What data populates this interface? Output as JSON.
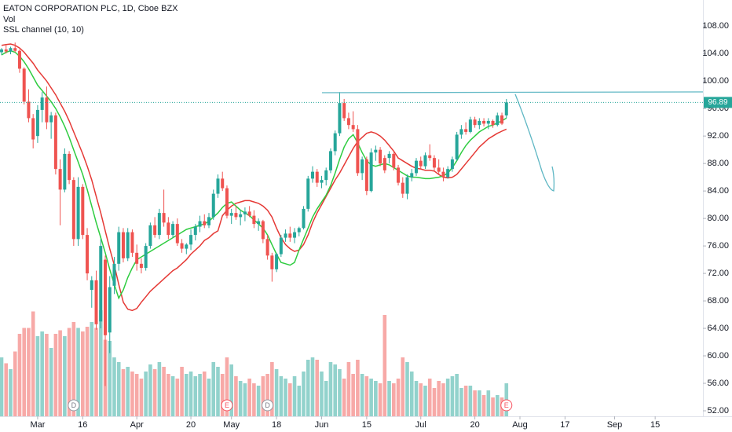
{
  "chart_data": {
    "type": "candlestick",
    "title": "EATON CORPORATION PLC, 1D, Cboe BZX",
    "indicators": [
      "Vol",
      "SSL channel (10, 10)"
    ],
    "up_color": "#26a69a",
    "down_color": "#ef5350",
    "ylim": [
      51.2,
      111.8
    ],
    "yticks": [
      {
        "value": 52,
        "label": "52.00"
      },
      {
        "value": 56,
        "label": "56.00"
      },
      {
        "value": 60,
        "label": "60.00"
      },
      {
        "value": 64,
        "label": "64.00"
      },
      {
        "value": 68,
        "label": "68.00"
      },
      {
        "value": 72,
        "label": "72.00"
      },
      {
        "value": 76,
        "label": "76.00"
      },
      {
        "value": 80,
        "label": "80.00"
      },
      {
        "value": 84,
        "label": "84.00"
      },
      {
        "value": 88,
        "label": "88.00"
      },
      {
        "value": 92,
        "label": "92.00"
      },
      {
        "value": 96,
        "label": "96.00"
      },
      {
        "value": 100,
        "label": "100.00"
      },
      {
        "value": 104,
        "label": "104.00"
      },
      {
        "value": 108,
        "label": "108.00"
      }
    ],
    "xlim": [
      -0.35,
      155.6
    ],
    "xticks": [
      {
        "value": 8,
        "label": "Mar"
      },
      {
        "value": 18,
        "label": "16"
      },
      {
        "value": 30,
        "label": "Apr"
      },
      {
        "value": 42,
        "label": "20"
      },
      {
        "value": 51,
        "label": "May"
      },
      {
        "value": 61,
        "label": "18"
      },
      {
        "value": 71,
        "label": "Jun"
      },
      {
        "value": 81,
        "label": "15"
      },
      {
        "value": 93,
        "label": "Jul"
      },
      {
        "value": 105,
        "label": "20"
      },
      {
        "value": 115,
        "label": "Aug"
      },
      {
        "value": 125,
        "label": "17"
      },
      {
        "value": 136,
        "label": "Sep"
      },
      {
        "value": 145,
        "label": "15"
      }
    ],
    "grid": false,
    "last_price": 96.89,
    "ohlc": [
      [
        104.2,
        104.8,
        103.8,
        104.6
      ],
      [
        104.6,
        105.2,
        104.0,
        104.3
      ],
      [
        104.3,
        105.0,
        103.9,
        104.8
      ],
      [
        104.8,
        105.6,
        104.2,
        104.4
      ],
      [
        104.4,
        104.6,
        101.2,
        101.8
      ],
      [
        101.8,
        102.0,
        96.6,
        97.0
      ],
      [
        97.0,
        98.8,
        94.0,
        94.6
      ],
      [
        94.6,
        95.2,
        90.2,
        91.5
      ],
      [
        92.0,
        96.5,
        91.0,
        95.8
      ],
      [
        95.8,
        98.4,
        94.0,
        97.6
      ],
      [
        97.6,
        99.2,
        93.0,
        94.0
      ],
      [
        94.0,
        95.5,
        91.6,
        95.0
      ],
      [
        95.0,
        95.4,
        86.4,
        87.2
      ],
      [
        87.2,
        88.6,
        79.0,
        84.2
      ],
      [
        84.2,
        90.2,
        83.8,
        89.4
      ],
      [
        89.4,
        89.8,
        85.0,
        85.6
      ],
      [
        85.6,
        86.0,
        76.0,
        77.0
      ],
      [
        77.0,
        86.0,
        76.0,
        84.6
      ],
      [
        84.6,
        85.0,
        77.0,
        77.6
      ],
      [
        77.6,
        78.6,
        71.0,
        72.0
      ],
      [
        69.6,
        71.6,
        67.0,
        71.0
      ],
      [
        71.0,
        72.4,
        63.8,
        64.6
      ],
      [
        65.0,
        77.0,
        64.0,
        76.0
      ],
      [
        74.0,
        74.6,
        55.6,
        63.0
      ],
      [
        63.4,
        71.6,
        60.4,
        70.0
      ],
      [
        70.2,
        74.4,
        69.0,
        73.4
      ],
      [
        73.4,
        78.8,
        72.4,
        78.0
      ],
      [
        78.0,
        78.6,
        73.6,
        74.2
      ],
      [
        74.2,
        78.6,
        73.8,
        78.0
      ],
      [
        78.0,
        78.4,
        74.4,
        75.0
      ],
      [
        75.0,
        76.2,
        72.4,
        73.4
      ],
      [
        73.4,
        74.2,
        72.0,
        72.8
      ],
      [
        72.8,
        76.4,
        72.4,
        76.0
      ],
      [
        76.0,
        79.4,
        75.6,
        79.0
      ],
      [
        79.0,
        80.2,
        77.2,
        77.6
      ],
      [
        77.6,
        81.4,
        77.0,
        80.8
      ],
      [
        80.8,
        84.2,
        78.8,
        79.4
      ],
      [
        79.4,
        80.2,
        77.0,
        77.6
      ],
      [
        77.6,
        79.6,
        77.2,
        79.2
      ],
      [
        79.2,
        80.0,
        76.0,
        76.4
      ],
      [
        76.4,
        77.0,
        75.0,
        75.6
      ],
      [
        75.6,
        76.4,
        74.8,
        76.2
      ],
      [
        76.2,
        78.4,
        75.4,
        77.6
      ],
      [
        77.6,
        79.2,
        76.8,
        78.8
      ],
      [
        78.8,
        80.4,
        78.0,
        79.6
      ],
      [
        79.6,
        80.6,
        78.6,
        79.0
      ],
      [
        79.0,
        80.8,
        78.6,
        80.2
      ],
      [
        80.2,
        84.2,
        79.8,
        83.6
      ],
      [
        83.6,
        86.4,
        83.0,
        85.8
      ],
      [
        85.8,
        86.8,
        84.0,
        84.4
      ],
      [
        84.4,
        84.8,
        80.0,
        80.4
      ],
      [
        80.4,
        81.4,
        79.2,
        80.8
      ],
      [
        80.8,
        81.8,
        79.8,
        80.2
      ],
      [
        80.2,
        81.2,
        79.0,
        80.6
      ],
      [
        80.6,
        81.6,
        79.6,
        81.0
      ],
      [
        81.0,
        81.8,
        80.2,
        80.4
      ],
      [
        80.4,
        81.2,
        78.6,
        79.2
      ],
      [
        79.2,
        80.0,
        78.2,
        79.6
      ],
      [
        79.6,
        79.8,
        76.4,
        77.0
      ],
      [
        77.0,
        77.6,
        74.0,
        74.6
      ],
      [
        74.6,
        75.0,
        70.8,
        72.6
      ],
      [
        72.6,
        75.0,
        72.2,
        74.8
      ],
      [
        74.8,
        77.6,
        74.4,
        77.2
      ],
      [
        77.2,
        78.4,
        76.6,
        77.8
      ],
      [
        77.8,
        78.8,
        76.6,
        77.2
      ],
      [
        77.2,
        78.6,
        76.4,
        78.0
      ],
      [
        78.0,
        78.8,
        77.4,
        78.6
      ],
      [
        78.6,
        81.8,
        78.4,
        81.4
      ],
      [
        81.4,
        86.2,
        81.0,
        85.8
      ],
      [
        85.8,
        87.6,
        85.2,
        86.8
      ],
      [
        86.8,
        87.2,
        84.6,
        85.2
      ],
      [
        85.2,
        86.2,
        84.4,
        85.6
      ],
      [
        85.6,
        87.4,
        84.8,
        87.0
      ],
      [
        87.0,
        90.2,
        86.6,
        89.8
      ],
      [
        89.8,
        92.8,
        89.2,
        92.4
      ],
      [
        92.4,
        98.4,
        92.0,
        96.8
      ],
      [
        96.8,
        97.4,
        94.2,
        94.6
      ],
      [
        94.6,
        95.4,
        93.0,
        93.6
      ],
      [
        93.6,
        95.6,
        92.6,
        93.0
      ],
      [
        93.0,
        93.6,
        86.2,
        86.6
      ],
      [
        86.6,
        89.0,
        85.6,
        88.6
      ],
      [
        88.6,
        89.0,
        83.4,
        84.0
      ],
      [
        84.0,
        90.2,
        83.8,
        89.6
      ],
      [
        89.6,
        90.6,
        88.4,
        90.0
      ],
      [
        90.0,
        90.4,
        87.6,
        88.0
      ],
      [
        88.8,
        89.2,
        86.6,
        87.0
      ],
      [
        88.8,
        89.8,
        88.0,
        89.4
      ],
      [
        89.4,
        89.6,
        87.0,
        87.4
      ],
      [
        87.4,
        87.8,
        84.8,
        85.2
      ],
      [
        85.2,
        86.0,
        83.0,
        83.6
      ],
      [
        83.6,
        86.4,
        82.8,
        86.0
      ],
      [
        86.0,
        87.2,
        85.4,
        86.6
      ],
      [
        86.6,
        88.8,
        86.2,
        88.4
      ],
      [
        88.4,
        89.0,
        87.2,
        87.6
      ],
      [
        87.6,
        89.6,
        87.2,
        89.2
      ],
      [
        89.2,
        90.8,
        88.4,
        88.8
      ],
      [
        88.8,
        89.2,
        87.0,
        87.4
      ],
      [
        87.4,
        88.6,
        86.4,
        86.8
      ],
      [
        86.8,
        87.4,
        85.4,
        86.0
      ],
      [
        86.0,
        87.6,
        85.8,
        87.2
      ],
      [
        87.2,
        89.0,
        86.8,
        88.6
      ],
      [
        88.6,
        92.6,
        88.4,
        92.2
      ],
      [
        92.2,
        93.6,
        91.6,
        93.0
      ],
      [
        93.0,
        94.0,
        92.2,
        92.6
      ],
      [
        92.6,
        94.8,
        92.4,
        94.4
      ],
      [
        94.4,
        94.8,
        93.2,
        93.6
      ],
      [
        93.6,
        94.6,
        93.0,
        94.2
      ],
      [
        94.2,
        94.6,
        93.4,
        93.8
      ],
      [
        93.8,
        94.6,
        93.0,
        94.2
      ],
      [
        94.2,
        94.4,
        93.2,
        93.6
      ],
      [
        93.6,
        95.4,
        93.4,
        95.0
      ],
      [
        95.0,
        95.4,
        93.6,
        93.8
      ],
      [
        95.0,
        97.4,
        94.6,
        96.89
      ]
    ],
    "vlim": [
      0,
      12
    ],
    "volume": [
      5,
      4.5,
      4,
      5.5,
      7,
      7.5,
      7.5,
      8.9,
      6.8,
      7.2,
      7,
      5.8,
      7,
      7.3,
      6.8,
      7.5,
      8,
      7.5,
      7.2,
      7.6,
      8,
      7.5,
      9,
      6.5,
      6.4,
      5,
      4.6,
      4,
      4.2,
      3.8,
      3.6,
      3.2,
      3.8,
      4.4,
      4,
      4.6,
      4.2,
      3.6,
      3.4,
      3.2,
      4.2,
      3.6,
      3.8,
      3.4,
      3.6,
      3.8,
      3.2,
      4.6,
      4.2,
      3.6,
      5,
      4.4,
      3.4,
      3,
      2.8,
      3.2,
      2.8,
      2.6,
      3.4,
      3.6,
      4.6,
      4,
      3.4,
      3.2,
      2.8,
      3.4,
      2.6,
      3.8,
      4.8,
      5,
      4.8,
      3.8,
      3,
      4.6,
      4.4,
      4,
      3.2,
      4.6,
      3.6,
      4.8,
      3.6,
      3.4,
      3.2,
      3,
      2.8,
      8.6,
      3,
      2.8,
      3.2,
      5,
      4.6,
      3.8,
      3,
      2.8,
      2.6,
      3.2,
      2.4,
      3,
      2.8,
      3.2,
      3.4,
      3.6,
      2.4,
      2.6,
      2.6,
      2.2,
      2.2,
      1.8,
      2.2,
      1.6,
      1.8,
      1.6,
      2.8
    ],
    "ssl": [
      {
        "color": "#e53935",
        "values": [
          105.2,
          105.3,
          105.4,
          105.2,
          104.8,
          104.2,
          103.4,
          102.6,
          101.6,
          100.8,
          100,
          99,
          98,
          96.8,
          95.6,
          94.2,
          92.6,
          91,
          89.4,
          87.6,
          85.6,
          83.2,
          80.8,
          78.2,
          75.6,
          73.2,
          70.4,
          67.8,
          66.8,
          66.6,
          66.9,
          67.8,
          68.6,
          69.4,
          70.0,
          70.6,
          71.2,
          71.8,
          72.4,
          72.8,
          73.4,
          74.0,
          74.8,
          75.4,
          76.0,
          76.8,
          77.2,
          77.8,
          78.2,
          80.4,
          81.2,
          81.8,
          82.2,
          82.4,
          82.6,
          82.6,
          82.4,
          82.2,
          81.8,
          81.2,
          80.2,
          78.6,
          77.2,
          76.2,
          75.6,
          75.2,
          75.4,
          76.2,
          77.6,
          79.4,
          80.8,
          82.0,
          83.2,
          84.4,
          85.6,
          86.6,
          87.8,
          89.0,
          90.2,
          91.2,
          91.8,
          92.4,
          92.6,
          92.4,
          92.0,
          91.4,
          90.6,
          89.8,
          88.8,
          88.4,
          88.0,
          87.6,
          87.3,
          87.2,
          87.0,
          87.0,
          86.9,
          86.4,
          86.0,
          85.9,
          86.0,
          86.4,
          87.2,
          88.0,
          88.8,
          89.6,
          90.4,
          91.0,
          91.6,
          92.0,
          92.4,
          92.7,
          93.0
        ]
      },
      {
        "color": "#2ecc40",
        "values": [
          103.8,
          104.2,
          104.4,
          104.2,
          103.6,
          102.8,
          101.8,
          100.6,
          99.4,
          98.6,
          97.8,
          97.0,
          96.0,
          94.8,
          93.4,
          91.8,
          90.0,
          88.2,
          86.4,
          84.2,
          81.8,
          79.4,
          77.2,
          75.0,
          72.6,
          70.4,
          68.4,
          69.6,
          71.4,
          72.8,
          74.0,
          74.4,
          74.8,
          75.2,
          75.6,
          76.0,
          76.4,
          76.8,
          77.2,
          77.6,
          78.0,
          78.4,
          78.6,
          78.8,
          79.0,
          79.2,
          79.6,
          80.2,
          80.8,
          81.6,
          82.2,
          82.4,
          81.8,
          81.2,
          80.8,
          80.4,
          79.8,
          79.2,
          78.6,
          77.6,
          76.2,
          74.8,
          73.6,
          73.4,
          73.2,
          73.6,
          75.4,
          77.0,
          78.6,
          80.2,
          81.4,
          82.4,
          83.4,
          84.8,
          86.6,
          88.6,
          90.4,
          91.6,
          92.2,
          91.0,
          89.6,
          88.4,
          87.8,
          87.6,
          87.8,
          88.0,
          87.8,
          87.4,
          87.0,
          86.6,
          86.2,
          86.0,
          86.0,
          85.9,
          85.8,
          85.8,
          85.9,
          86.0,
          86.2,
          86.6,
          87.4,
          88.4,
          89.6,
          90.6,
          91.4,
          92.0,
          92.6,
          93.0,
          93.4,
          93.6,
          93.9,
          94.2,
          94.6
        ]
      }
    ],
    "events": [
      {
        "label": "D",
        "index": 16
      },
      {
        "label": "E",
        "index": 50
      },
      {
        "label": "D",
        "index": 59
      },
      {
        "label": "E",
        "index": 112
      }
    ]
  }
}
